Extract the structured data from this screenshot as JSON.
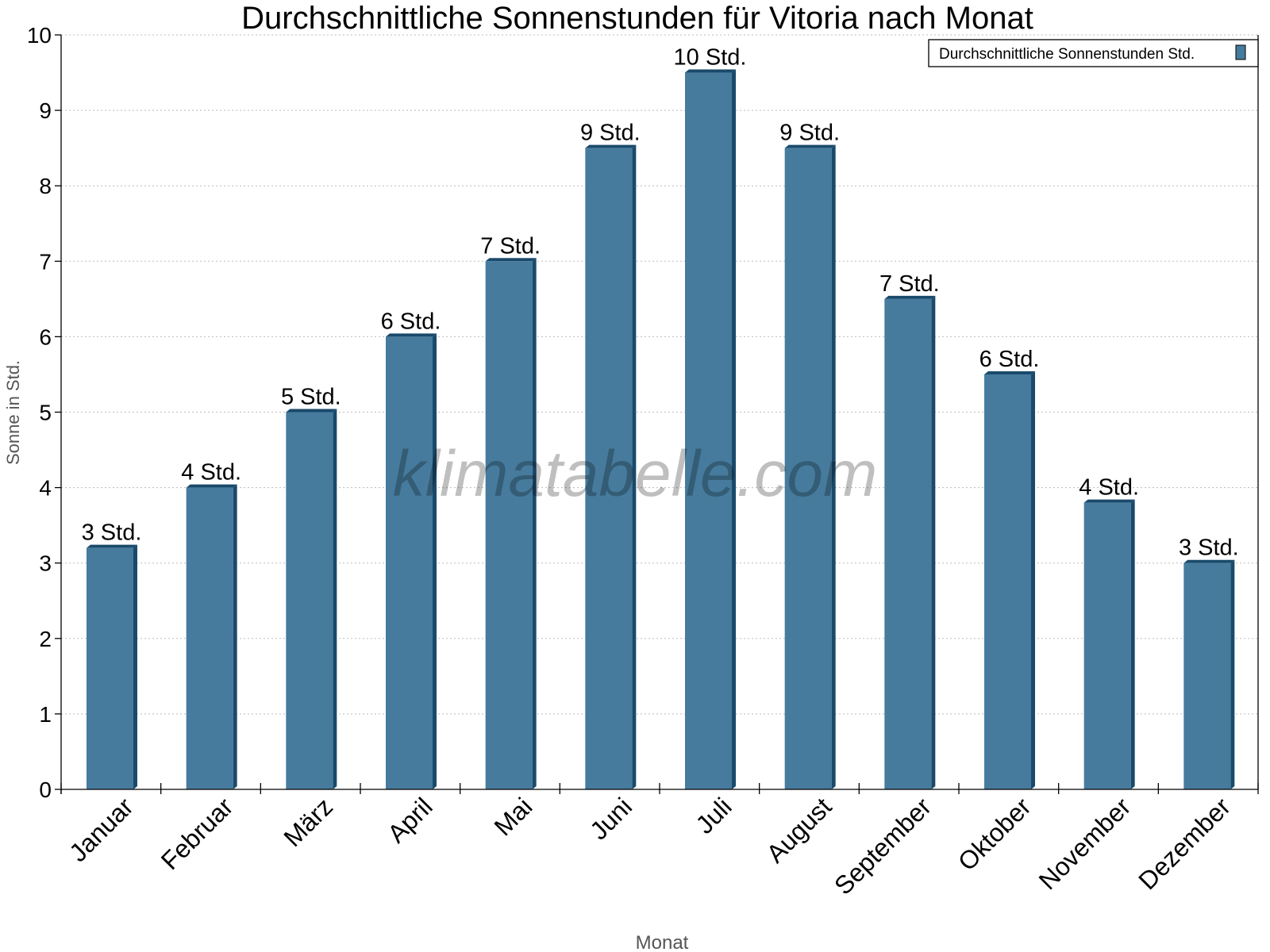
{
  "chart_data": {
    "type": "bar",
    "title": "Durchschnittliche Sonnenstunden für Vitoria nach Monat",
    "xlabel": "Monat",
    "ylabel": "Sonne in Std.",
    "ylim": [
      0,
      10
    ],
    "yticks": [
      "0",
      "1",
      "2",
      "3",
      "4",
      "5",
      "6",
      "7",
      "8",
      "9",
      "10"
    ],
    "grid": true,
    "legend_position": "top-right",
    "categories": [
      "Januar",
      "Februar",
      "März",
      "April",
      "Mai",
      "Juni",
      "Juli",
      "August",
      "September",
      "Oktober",
      "November",
      "Dezember"
    ],
    "series": [
      {
        "name": "Durchschnittliche Sonnenstunden Std.",
        "color": "#467b9d",
        "side_color": "#1a4a6b",
        "values": [
          3.2,
          4.0,
          5.0,
          6.0,
          7.0,
          8.5,
          9.5,
          8.5,
          6.5,
          5.5,
          3.8,
          3.0
        ],
        "data_labels": [
          "3 Std.",
          "4 Std.",
          "5 Std.",
          "6 Std.",
          "7 Std.",
          "9 Std.",
          "10 Std.",
          "9 Std.",
          "7 Std.",
          "6 Std.",
          "4 Std.",
          "3 Std."
        ]
      }
    ],
    "watermark": "klimatabelle.com"
  }
}
